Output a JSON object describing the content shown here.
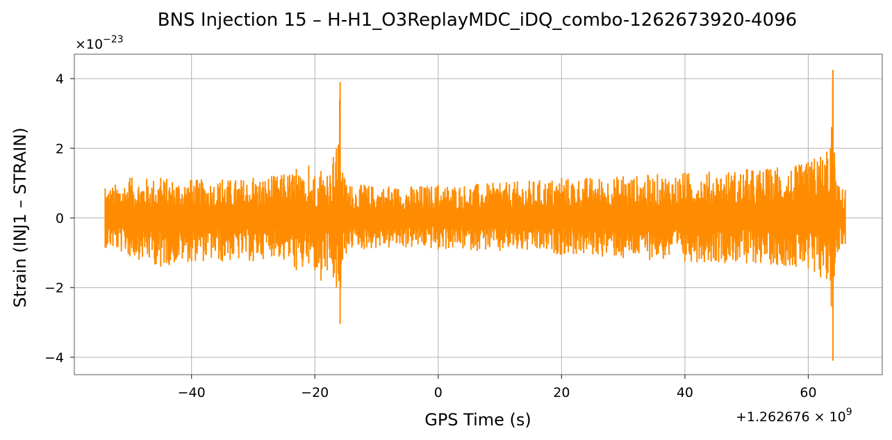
{
  "chart_data": {
    "type": "line",
    "title": "BNS Injection 15 – H-H1_O3ReplayMDC_iDQ_combo-1262673920-4096",
    "xlabel": "GPS Time (s)",
    "ylabel": "Strain (INJ1 – STRAIN)",
    "x_offset_label": "+1.262676 × 10",
    "x_offset_exponent": "9",
    "y_scale_label": "×10",
    "y_scale_exponent": "−23",
    "xlim": [
      -59,
      72
    ],
    "ylim": [
      -4.5,
      4.7
    ],
    "x_ticks": [
      -40,
      -20,
      0,
      20,
      40,
      60
    ],
    "x_tick_labels": [
      "−40",
      "−20",
      "0",
      "20",
      "40",
      "60"
    ],
    "y_ticks": [
      -4,
      -2,
      0,
      2,
      4
    ],
    "y_tick_labels": [
      "−4",
      "−2",
      "0",
      "2",
      "4"
    ],
    "grid": true,
    "series": [
      {
        "color": "#ff8c00",
        "x_start": -54,
        "x_end": 66,
        "envelope_x": [
          -54,
          -50,
          -45,
          -40,
          -35,
          -30,
          -27,
          -25,
          -23,
          -22,
          -21,
          -20,
          -19,
          -18,
          -17,
          -16.5,
          -16.2,
          -15.9,
          -15.5,
          -14,
          -12,
          -8,
          0,
          10,
          20,
          30,
          40,
          50,
          55,
          58,
          60,
          61,
          62,
          63,
          63.6,
          64,
          64.3,
          65,
          66
        ],
        "envelope_upper": [
          0.85,
          1.15,
          1.15,
          1.1,
          1.1,
          1.15,
          1.2,
          1.25,
          1.4,
          1.1,
          1.5,
          1.2,
          1.35,
          1.2,
          1.75,
          2.0,
          2.1,
          3.9,
          1.3,
          0.9,
          0.95,
          0.9,
          0.95,
          1.0,
          1.15,
          1.2,
          1.3,
          1.4,
          1.45,
          1.5,
          1.6,
          1.7,
          1.75,
          1.9,
          2.0,
          4.25,
          1.4,
          0.9,
          0.8
        ],
        "envelope_lower": [
          -0.85,
          -1.1,
          -1.4,
          -1.25,
          -1.25,
          -1.25,
          -1.1,
          -1.2,
          -1.5,
          -1.4,
          -1.3,
          -1.5,
          -1.8,
          -1.5,
          -1.7,
          -2.0,
          -1.6,
          -3.05,
          -1.2,
          -0.85,
          -0.9,
          -0.85,
          -0.9,
          -0.95,
          -1.05,
          -1.15,
          -1.25,
          -1.3,
          -1.35,
          -1.4,
          -1.45,
          -1.55,
          -1.7,
          -1.75,
          -1.8,
          -4.1,
          -1.3,
          -0.9,
          -0.75
        ]
      }
    ]
  }
}
